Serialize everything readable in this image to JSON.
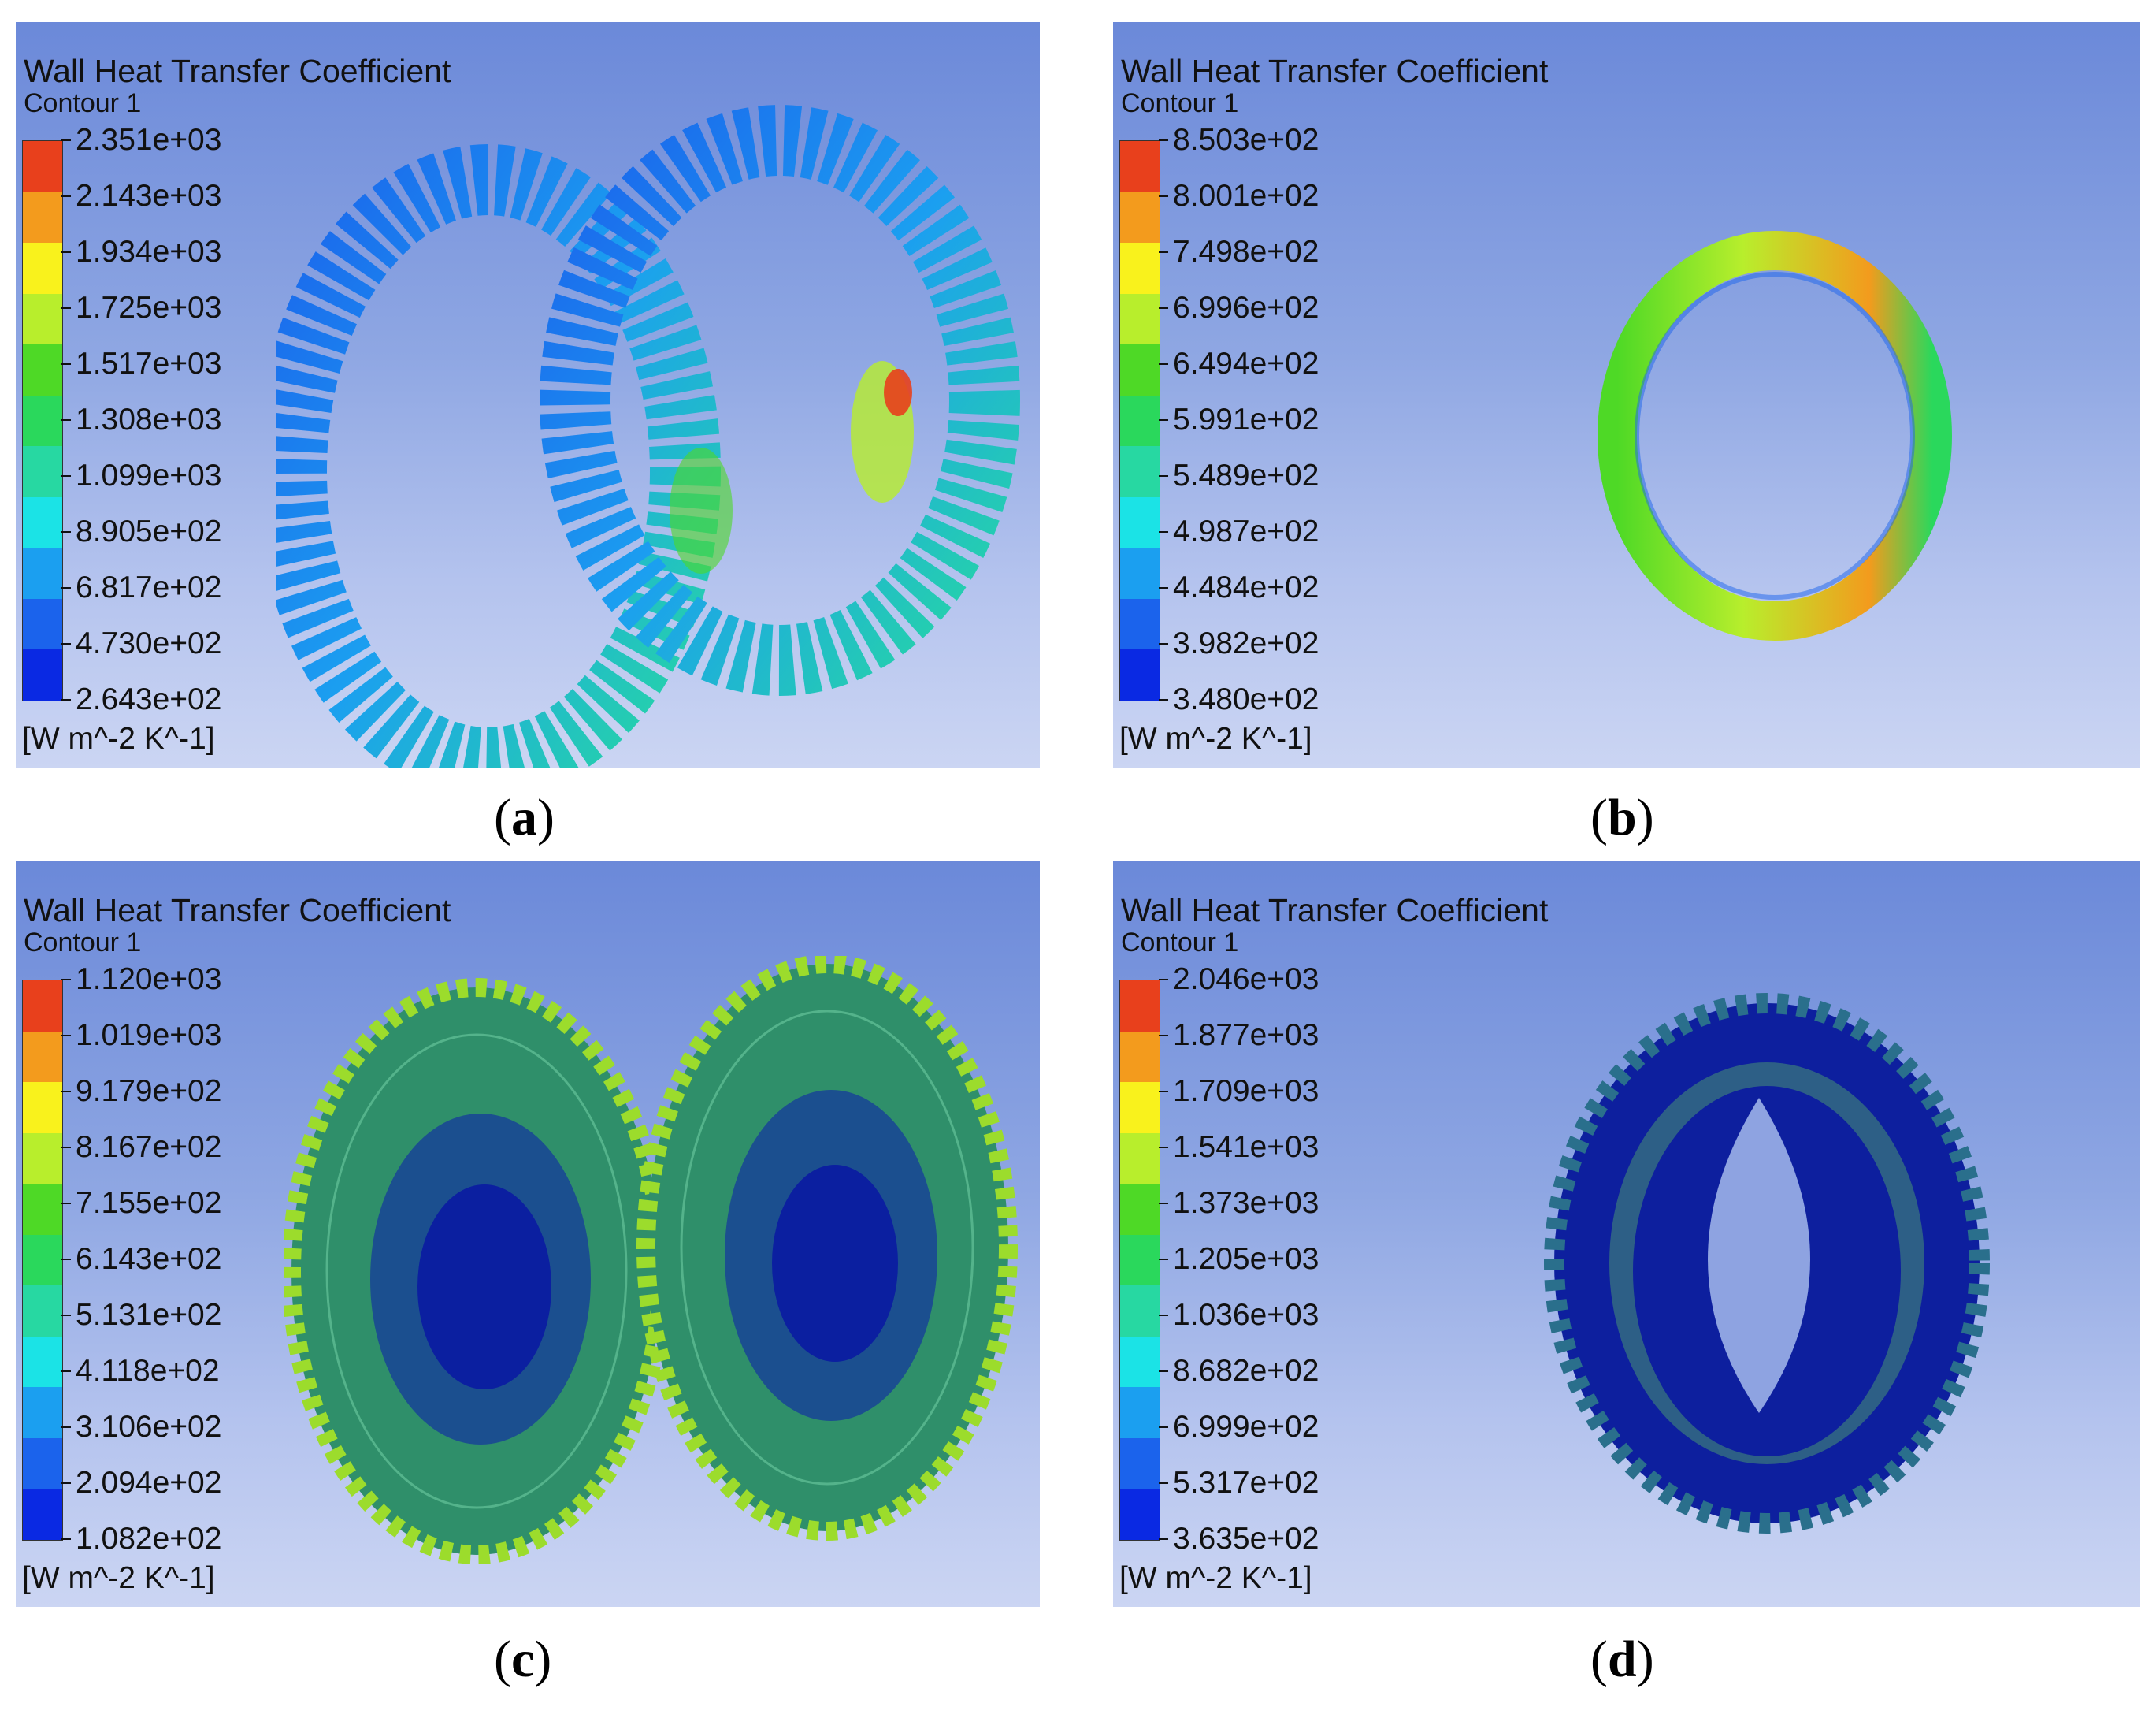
{
  "colormap": [
    "#e8401c",
    "#f39b1d",
    "#f9f21c",
    "#b8ee2c",
    "#4ed926",
    "#2ad85c",
    "#27d8a2",
    "#1be3e6",
    "#1b9ff0",
    "#1b63ec",
    "#0a29e3"
  ],
  "panels": [
    {
      "id": "a",
      "title": "Wall Heat Transfer Coefficient",
      "subtitle": "Contour 1",
      "unit": "[W m^-2 K^-1]",
      "caption_letter": "a",
      "legend_labels": [
        "2.351e+03",
        "2.143e+03",
        "1.934e+03",
        "1.725e+03",
        "1.517e+03",
        "1.308e+03",
        "1.099e+03",
        "8.905e+02",
        "6.817e+02",
        "4.730e+02",
        "2.643e+02"
      ]
    },
    {
      "id": "b",
      "title": "Wall Heat Transfer Coefficient",
      "subtitle": "Contour 1",
      "unit": "[W m^-2 K^-1]",
      "caption_letter": "b",
      "legend_labels": [
        "8.503e+02",
        "8.001e+02",
        "7.498e+02",
        "6.996e+02",
        "6.494e+02",
        "5.991e+02",
        "5.489e+02",
        "4.987e+02",
        "4.484e+02",
        "3.982e+02",
        "3.480e+02"
      ]
    },
    {
      "id": "c",
      "title": "Wall Heat Transfer Coefficient",
      "subtitle": "Contour 1",
      "unit": "[W m^-2 K^-1]",
      "caption_letter": "c",
      "legend_labels": [
        "1.120e+03",
        "1.019e+03",
        "9.179e+02",
        "8.167e+02",
        "7.155e+02",
        "6.143e+02",
        "5.131e+02",
        "4.118e+02",
        "3.106e+02",
        "2.094e+02",
        "1.082e+02"
      ]
    },
    {
      "id": "d",
      "title": "Wall Heat Transfer Coefficient",
      "subtitle": "Contour 1",
      "unit": "[W m^-2 K^-1]",
      "caption_letter": "d",
      "legend_labels": [
        "2.046e+03",
        "1.877e+03",
        "1.709e+03",
        "1.541e+03",
        "1.373e+03",
        "1.205e+03",
        "1.036e+03",
        "8.682e+02",
        "6.999e+02",
        "5.317e+02",
        "3.635e+02"
      ]
    }
  ]
}
